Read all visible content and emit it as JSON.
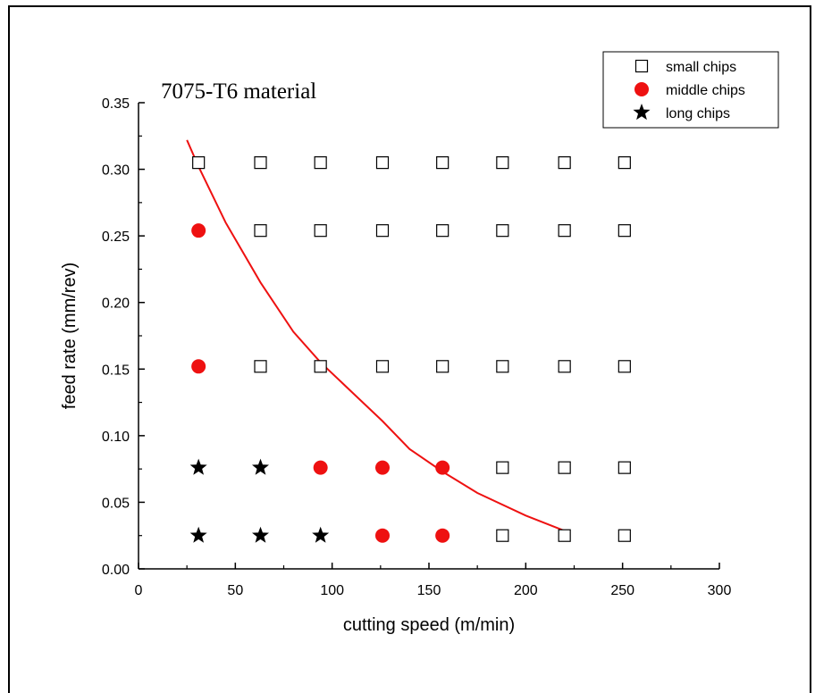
{
  "chart_data": {
    "type": "scatter",
    "title": "7075-T6 material",
    "xlabel": "cutting speed (m/min)",
    "ylabel": "feed rate (mm/rev)",
    "xlim": [
      0,
      300
    ],
    "ylim": [
      0,
      0.35
    ],
    "x_ticks": [
      "0",
      "50",
      "100",
      "150",
      "200",
      "250",
      "300"
    ],
    "y_ticks": [
      "0.00",
      "0.05",
      "0.10",
      "0.15",
      "0.20",
      "0.25",
      "0.30",
      "0.35"
    ],
    "grid": false,
    "legend_position": "top-right",
    "series": [
      {
        "name": "small chips",
        "marker": "open-square",
        "color": "#000000",
        "points": [
          [
            31,
            0.305
          ],
          [
            63,
            0.305
          ],
          [
            94,
            0.305
          ],
          [
            126,
            0.305
          ],
          [
            157,
            0.305
          ],
          [
            188,
            0.305
          ],
          [
            220,
            0.305
          ],
          [
            251,
            0.305
          ],
          [
            63,
            0.254
          ],
          [
            94,
            0.254
          ],
          [
            126,
            0.254
          ],
          [
            157,
            0.254
          ],
          [
            188,
            0.254
          ],
          [
            220,
            0.254
          ],
          [
            251,
            0.254
          ],
          [
            63,
            0.152
          ],
          [
            94,
            0.152
          ],
          [
            126,
            0.152
          ],
          [
            157,
            0.152
          ],
          [
            188,
            0.152
          ],
          [
            220,
            0.152
          ],
          [
            251,
            0.152
          ],
          [
            188,
            0.076
          ],
          [
            220,
            0.076
          ],
          [
            251,
            0.076
          ],
          [
            188,
            0.025
          ],
          [
            220,
            0.025
          ],
          [
            251,
            0.025
          ]
        ]
      },
      {
        "name": "middle chips",
        "marker": "filled-circle",
        "color": "#ee1111",
        "points": [
          [
            31,
            0.254
          ],
          [
            31,
            0.152
          ],
          [
            94,
            0.076
          ],
          [
            126,
            0.076
          ],
          [
            157,
            0.076
          ],
          [
            126,
            0.025
          ],
          [
            157,
            0.025
          ]
        ]
      },
      {
        "name": "long chips",
        "marker": "filled-star",
        "color": "#000000",
        "points": [
          [
            31,
            0.076
          ],
          [
            63,
            0.076
          ],
          [
            31,
            0.025
          ],
          [
            63,
            0.025
          ],
          [
            94,
            0.025
          ]
        ]
      }
    ],
    "boundary_curve": {
      "color": "#ee1111",
      "points": [
        [
          25,
          0.322
        ],
        [
          31,
          0.302
        ],
        [
          45,
          0.26
        ],
        [
          63,
          0.215
        ],
        [
          80,
          0.178
        ],
        [
          94,
          0.155
        ],
        [
          110,
          0.133
        ],
        [
          126,
          0.111
        ],
        [
          140,
          0.09
        ],
        [
          157,
          0.073
        ],
        [
          175,
          0.057
        ],
        [
          200,
          0.04
        ],
        [
          221,
          0.028
        ]
      ]
    }
  }
}
